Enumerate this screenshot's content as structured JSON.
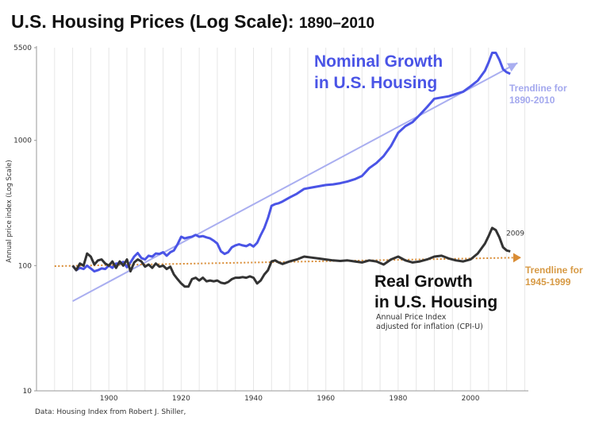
{
  "title": {
    "main": "U.S. Housing Prices (Log Scale):",
    "sub": "1890–2010"
  },
  "source": "Data: Housing Index from Robert J. Shiller,",
  "chart_data": {
    "type": "line",
    "title": "U.S. Housing Prices (Log Scale): 1890–2010",
    "xlabel": "",
    "ylabel": "Annual price index (Log Scale)",
    "xlim": [
      1880,
      2016
    ],
    "ylim": [
      10,
      5500
    ],
    "y_scale": "log",
    "x_ticks": [
      1900,
      1920,
      1940,
      1960,
      1980,
      2000
    ],
    "y_ticks": [
      10,
      100,
      1000,
      5500
    ],
    "grid": "vertical",
    "colors": {
      "nominal": "#4a54e6",
      "real": "#333333",
      "trend_nominal": "#a9aef0",
      "trend_real": "#d98c35",
      "trend_real_label": "#d79a45",
      "trend_nominal_label": "#a3a8ee"
    },
    "series": [
      {
        "name": "Nominal Growth in U.S. Housing",
        "x": [
          1890,
          1891,
          1892,
          1893,
          1894,
          1895,
          1896,
          1897,
          1898,
          1899,
          1900,
          1901,
          1902,
          1903,
          1904,
          1905,
          1906,
          1907,
          1908,
          1909,
          1910,
          1911,
          1912,
          1913,
          1914,
          1915,
          1916,
          1917,
          1918,
          1919,
          1920,
          1921,
          1922,
          1923,
          1924,
          1925,
          1926,
          1927,
          1928,
          1929,
          1930,
          1931,
          1932,
          1933,
          1934,
          1935,
          1936,
          1937,
          1938,
          1939,
          1940,
          1941,
          1942,
          1943,
          1944,
          1945,
          1946,
          1947,
          1948,
          1950,
          1952,
          1954,
          1956,
          1958,
          1960,
          1962,
          1964,
          1966,
          1968,
          1970,
          1972,
          1974,
          1976,
          1978,
          1980,
          1982,
          1984,
          1986,
          1988,
          1990,
          1992,
          1994,
          1996,
          1998,
          2000,
          2002,
          2004,
          2005,
          2006,
          2007,
          2008,
          2009,
          2010,
          2011
        ],
        "values": [
          100,
          92,
          96,
          94,
          100,
          95,
          90,
          92,
          95,
          94,
          100,
          96,
          104,
          104,
          107,
          97,
          106,
          118,
          126,
          115,
          112,
          120,
          118,
          125,
          124,
          128,
          120,
          128,
          132,
          148,
          170,
          165,
          168,
          170,
          176,
          170,
          172,
          168,
          165,
          158,
          150,
          130,
          124,
          128,
          140,
          145,
          148,
          145,
          143,
          148,
          142,
          152,
          175,
          200,
          240,
          300,
          310,
          315,
          325,
          350,
          375,
          410,
          420,
          430,
          440,
          445,
          455,
          470,
          490,
          520,
          600,
          660,
          750,
          900,
          1150,
          1300,
          1400,
          1600,
          1850,
          2150,
          2200,
          2250,
          2350,
          2450,
          2700,
          3000,
          3600,
          4200,
          5000,
          5000,
          4400,
          3700,
          3500,
          3400
        ]
      },
      {
        "name": "Real Growth in U.S. Housing",
        "x": [
          1890,
          1891,
          1892,
          1893,
          1894,
          1895,
          1896,
          1897,
          1898,
          1899,
          1900,
          1901,
          1902,
          1903,
          1904,
          1905,
          1906,
          1907,
          1908,
          1909,
          1910,
          1911,
          1912,
          1913,
          1914,
          1915,
          1916,
          1917,
          1918,
          1919,
          1920,
          1921,
          1922,
          1923,
          1924,
          1925,
          1926,
          1927,
          1928,
          1929,
          1930,
          1931,
          1932,
          1933,
          1934,
          1935,
          1936,
          1937,
          1938,
          1939,
          1940,
          1941,
          1942,
          1943,
          1944,
          1945,
          1946,
          1947,
          1948,
          1950,
          1952,
          1954,
          1956,
          1958,
          1960,
          1962,
          1964,
          1966,
          1968,
          1970,
          1972,
          1974,
          1976,
          1978,
          1980,
          1982,
          1984,
          1986,
          1988,
          1990,
          1992,
          1994,
          1996,
          1998,
          2000,
          2002,
          2004,
          2005,
          2006,
          2007,
          2008,
          2009,
          2010,
          2011
        ],
        "values": [
          100,
          92,
          104,
          100,
          125,
          118,
          102,
          110,
          112,
          104,
          100,
          108,
          96,
          108,
          100,
          112,
          90,
          106,
          112,
          108,
          98,
          102,
          96,
          104,
          98,
          100,
          94,
          98,
          85,
          78,
          72,
          68,
          68,
          78,
          80,
          76,
          80,
          75,
          76,
          75,
          76,
          73,
          72,
          74,
          78,
          80,
          80,
          81,
          80,
          82,
          80,
          72,
          76,
          85,
          92,
          108,
          110,
          106,
          103,
          108,
          112,
          118,
          116,
          114,
          112,
          110,
          109,
          110,
          108,
          106,
          110,
          108,
          102,
          112,
          118,
          110,
          106,
          108,
          112,
          118,
          120,
          114,
          110,
          108,
          112,
          125,
          150,
          172,
          200,
          192,
          168,
          140,
          132,
          130
        ]
      }
    ],
    "trendlines": [
      {
        "name": "Trendline for 1890-2010",
        "x": [
          1890,
          2013
        ],
        "values": [
          52,
          4150
        ]
      },
      {
        "name": "Trendline for 1945-1999",
        "x": [
          1885,
          2014
        ],
        "values": [
          99,
          116
        ]
      }
    ],
    "annotations": [
      {
        "text": "2009",
        "x": 2009,
        "y": 132
      },
      {
        "text": "Annual Price Index adjusted for inflation (CPI-U)",
        "lines": [
          "Annual Price Index",
          "adjusted for inflation (CPI-U)"
        ]
      }
    ],
    "labels": {
      "nominal": [
        "Nominal Growth",
        "in U.S. Housing"
      ],
      "real": [
        "Real Growth",
        "in U.S. Housing"
      ],
      "trend_nominal": [
        "Trendline for",
        "1890-2010"
      ],
      "trend_real": [
        "Trendline for",
        "1945-1999"
      ]
    }
  }
}
